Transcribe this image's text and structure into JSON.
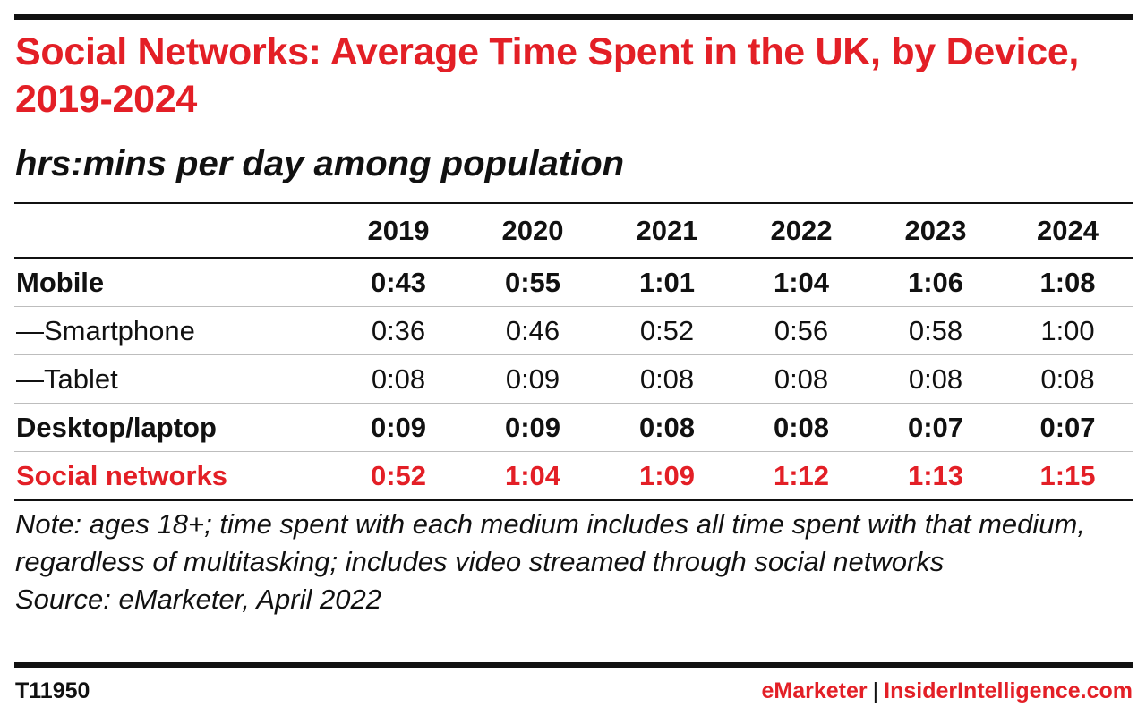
{
  "header": {
    "title": "Social Networks: Average Time Spent in the UK, by Device, 2019-2024",
    "subtitle": "hrs:mins per day among population"
  },
  "colors": {
    "accent": "#e31f26",
    "text": "#111111"
  },
  "chart_data": {
    "type": "table",
    "title": "Social Networks: Average Time Spent in the UK, by Device, 2019-2024",
    "subtitle": "hrs:mins per day among population",
    "columns": [
      "2019",
      "2020",
      "2021",
      "2022",
      "2023",
      "2024"
    ],
    "rows": [
      {
        "label": "Mobile",
        "style": "bold",
        "values": [
          "0:43",
          "0:55",
          "1:01",
          "1:04",
          "1:06",
          "1:08"
        ]
      },
      {
        "label": "—Smartphone",
        "style": "normal",
        "values": [
          "0:36",
          "0:46",
          "0:52",
          "0:56",
          "0:58",
          "1:00"
        ]
      },
      {
        "label": "—Tablet",
        "style": "normal",
        "values": [
          "0:08",
          "0:09",
          "0:08",
          "0:08",
          "0:08",
          "0:08"
        ]
      },
      {
        "label": "Desktop/laptop",
        "style": "bold",
        "values": [
          "0:09",
          "0:09",
          "0:08",
          "0:08",
          "0:07",
          "0:07"
        ]
      },
      {
        "label": "Social networks",
        "style": "accent",
        "values": [
          "0:52",
          "1:04",
          "1:09",
          "1:12",
          "1:13",
          "1:15"
        ]
      }
    ]
  },
  "notes": {
    "note": "Note: ages 18+; time spent with each medium includes all time spent with that medium, regardless of multitasking; includes video streamed through social networks",
    "source": "Source: eMarketer, April 2022"
  },
  "footer": {
    "id": "T11950",
    "brand": "eMarketer",
    "separator": "|",
    "site": "InsiderIntelligence.com"
  }
}
